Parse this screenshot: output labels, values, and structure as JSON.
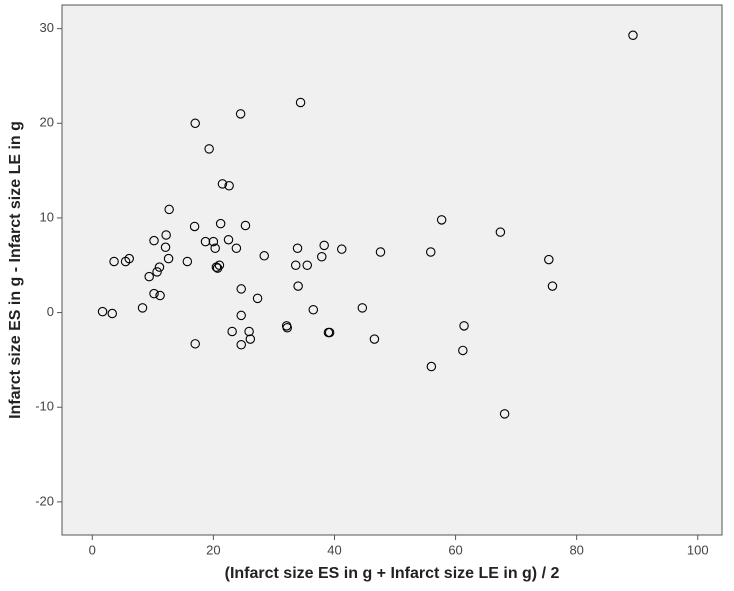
{
  "chart_data": {
    "type": "scatter",
    "xlabel": "(Infarct size ES in g + Infarct size LE in g) / 2",
    "ylabel": "Infarct size ES in g - Infarct size LE in g",
    "x": [
      1.7,
      3.3,
      3.6,
      5.5,
      6.1,
      8.3,
      9.4,
      10.2,
      10.2,
      10.7,
      11.1,
      11.2,
      12.1,
      12.2,
      12.6,
      12.7,
      15.7,
      16.9,
      17.0,
      17.0,
      18.7,
      19.3,
      20.0,
      20.3,
      20.5,
      21.2,
      21.0,
      20.7,
      21.5,
      22.6,
      22.5,
      23.1,
      23.8,
      24.5,
      24.6,
      24.6,
      24.6,
      25.3,
      25.9,
      26.1,
      27.3,
      28.4,
      32.1,
      32.2,
      33.6,
      33.9,
      34.0,
      34.4,
      35.5,
      36.5,
      37.9,
      38.3,
      39.0,
      39.2,
      41.2,
      44.6,
      46.6,
      47.6,
      55.9,
      56.0,
      57.7,
      61.2,
      61.4,
      67.4,
      68.1,
      75.4,
      76.0,
      89.3
    ],
    "values": [
      0.1,
      -0.1,
      5.4,
      5.4,
      5.7,
      0.5,
      3.8,
      7.6,
      2.0,
      4.3,
      4.8,
      1.8,
      6.9,
      8.2,
      5.7,
      10.9,
      5.4,
      9.1,
      20.0,
      -3.3,
      7.5,
      17.3,
      7.5,
      6.8,
      4.8,
      9.4,
      5.0,
      4.7,
      13.6,
      13.4,
      7.7,
      -2.0,
      6.8,
      21.0,
      -0.3,
      2.5,
      -3.4,
      9.2,
      -2.0,
      -2.8,
      1.5,
      6.0,
      -1.4,
      -1.6,
      5.0,
      6.8,
      2.8,
      22.2,
      5.0,
      0.3,
      5.9,
      7.1,
      -2.1,
      -2.1,
      6.7,
      0.5,
      -2.8,
      6.4,
      6.4,
      -5.7,
      9.8,
      -4.0,
      -1.4,
      8.5,
      -10.7,
      5.6,
      2.8,
      29.3
    ],
    "color": "#000000",
    "xlim": [
      -5,
      104
    ],
    "ylim": [
      -23.5,
      32.5
    ],
    "xticks": [
      0,
      20,
      40,
      60,
      80,
      100
    ],
    "yticks": [
      -20,
      -10,
      0,
      10,
      20,
      30
    ]
  }
}
